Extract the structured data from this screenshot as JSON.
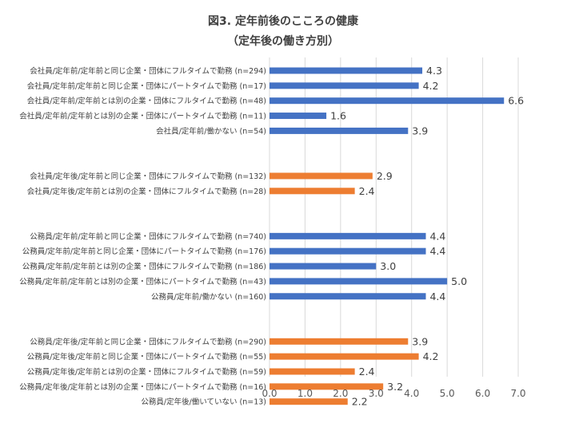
{
  "chart_data": {
    "type": "bar",
    "orientation": "horizontal",
    "title": "図3. 定年前後のこころの健康",
    "subtitle": "（定年後の働き方別）",
    "xlim": [
      0,
      7
    ],
    "xticks": [
      "0.0",
      "1.0",
      "2.0",
      "3.0",
      "4.0",
      "5.0",
      "6.0",
      "7.0"
    ],
    "grid": true,
    "colors": {
      "before": "#4472C4",
      "after": "#ED7D31",
      "grid": "#D9D9D9",
      "text": "#404040"
    },
    "groups": [
      {
        "color_key": "before",
        "bars": [
          {
            "label": "会社員/定年前/定年前と同じ企業・団体にフルタイムで勤務 (n=294)",
            "value": 4.3,
            "value_label": "4.3"
          },
          {
            "label": "会社員/定年前/定年前と同じ企業・団体にパートタイムで勤務 (n=17)",
            "value": 4.2,
            "value_label": "4.2"
          },
          {
            "label": "会社員/定年前/定年前とは別の企業・団体にフルタイムで勤務 (n=48)",
            "value": 6.6,
            "value_label": "6.6"
          },
          {
            "label": "会社員/定年前/定年前とは別の企業・団体にパートタイムで勤務 (n=11)",
            "value": 1.6,
            "value_label": "1.6"
          },
          {
            "label": "会社員/定年前/働かない (n=54)",
            "value": 3.9,
            "value_label": "3.9"
          }
        ]
      },
      {
        "color_key": "after",
        "bars": [
          {
            "label": "会社員/定年後/定年前と同じ企業・団体にフルタイムで勤務 (n=132)",
            "value": 2.9,
            "value_label": "2.9"
          },
          {
            "label": "会社員/定年後/定年前とは別の企業・団体にフルタイムで勤務 (n=28)",
            "value": 2.4,
            "value_label": "2.4"
          }
        ]
      },
      {
        "color_key": "before",
        "bars": [
          {
            "label": "公務員/定年前/定年前と同じ企業・団体にフルタイムで勤務 (n=740)",
            "value": 4.4,
            "value_label": "4.4"
          },
          {
            "label": "公務員/定年前/定年前と同じ企業・団体にパートタイムで勤務 (n=176)",
            "value": 4.4,
            "value_label": "4.4"
          },
          {
            "label": "公務員/定年前/定年前とは別の企業・団体にフルタイムで勤務 (n=186)",
            "value": 3.0,
            "value_label": "3.0"
          },
          {
            "label": "公務員/定年前/定年前とは別の企業・団体にパートタイムで勤務 (n=43)",
            "value": 5.0,
            "value_label": "5.0"
          },
          {
            "label": "公務員/定年前/働かない (n=160)",
            "value": 4.4,
            "value_label": "4.4"
          }
        ]
      },
      {
        "color_key": "after",
        "bars": [
          {
            "label": "公務員/定年後/定年前と同じ企業・団体にフルタイムで勤務 (n=290)",
            "value": 3.9,
            "value_label": "3.9"
          },
          {
            "label": "公務員/定年後/定年前と同じ企業・団体にパートタイムで勤務 (n=55)",
            "value": 4.2,
            "value_label": "4.2"
          },
          {
            "label": "公務員/定年後/定年前とは別の企業・団体にフルタイムで勤務 (n=59)",
            "value": 2.4,
            "value_label": "2.4"
          },
          {
            "label": "公務員/定年後/定年前とは別の企業・団体にパートタイムで勤務 (n=16)",
            "value": 3.2,
            "value_label": "3.2"
          },
          {
            "label": "公務員/定年後/働いていない (n=13)",
            "value": 2.2,
            "value_label": "2.2"
          }
        ]
      }
    ]
  }
}
